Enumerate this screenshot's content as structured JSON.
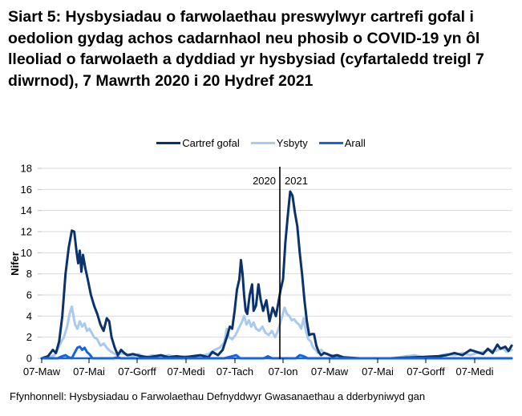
{
  "title": "Siart 5: Hysbysiadau o farwolaethau preswylwyr cartrefi gofal i oedolion gydag achos cadarnhaol neu phosib o COVID-19 yn ôl lleoliad o farwolaeth a dyddiad yr hysbysiad (cyfartaledd treigl 7 diwrnod), 7 Mawrth 2020 i 20 Hydref 2021",
  "source": "Ffynhonnell: Hysbysiadau o Farwolaethau Defnyddwyr Gwasanaethau a dderbyniwyd gan",
  "legend": [
    {
      "label": "Cartref gofal",
      "color": "#0b336b"
    },
    {
      "label": "Ysbyty",
      "color": "#a8c9f0"
    },
    {
      "label": "Arall",
      "color": "#1565e0"
    }
  ],
  "annotations": {
    "left_year": "2020",
    "right_year": "2021"
  },
  "chart_data": {
    "type": "line",
    "title": "Siart 5: Hysbysiadau o farwolaethau preswylwyr cartrefi gofal i oedolion gydag achos cadarnhaol neu phosib o COVID-19 yn ôl lleoliad o farwolaeth a dyddiad yr hysbysiad (cyfartaledd treigl 7 diwrnod), 7 Mawrth 2020 i 20 Hydref 2021",
    "xlabel": "",
    "ylabel": "Nifer",
    "ylim": [
      0,
      18
    ],
    "yticks": [
      0,
      2,
      4,
      6,
      8,
      10,
      12,
      14,
      16,
      18
    ],
    "xtick_labels": [
      "07-Maw",
      "07-Mai",
      "07-Gorff",
      "07-Medi",
      "07-Tach",
      "07-Ion",
      "07-Maw",
      "07-Mai",
      "07-Gorff",
      "07-Medi"
    ],
    "grid": true,
    "legend_position": "top",
    "x_unit": "days since 07-Mar-2020",
    "year_divider_day": 300,
    "series": [
      {
        "name": "Cartref gofal",
        "color": "#0b336b",
        "points": [
          [
            0,
            0
          ],
          [
            8,
            0.2
          ],
          [
            14,
            0.8
          ],
          [
            18,
            0.5
          ],
          [
            22,
            1.6
          ],
          [
            26,
            4.0
          ],
          [
            30,
            8.0
          ],
          [
            34,
            10.5
          ],
          [
            38,
            12.1
          ],
          [
            41,
            12.0
          ],
          [
            44,
            10.0
          ],
          [
            46,
            9.0
          ],
          [
            48,
            10.2
          ],
          [
            50,
            8.2
          ],
          [
            52,
            9.8
          ],
          [
            55,
            8.5
          ],
          [
            58,
            7.5
          ],
          [
            62,
            6.0
          ],
          [
            66,
            5.0
          ],
          [
            70,
            4.2
          ],
          [
            74,
            3.2
          ],
          [
            78,
            2.6
          ],
          [
            82,
            3.8
          ],
          [
            85,
            3.5
          ],
          [
            88,
            2.0
          ],
          [
            92,
            1.0
          ],
          [
            96,
            0.3
          ],
          [
            100,
            0.8
          ],
          [
            104,
            0.5
          ],
          [
            108,
            0.3
          ],
          [
            115,
            0.4
          ],
          [
            125,
            0.2
          ],
          [
            135,
            0.1
          ],
          [
            150,
            0.3
          ],
          [
            160,
            0.1
          ],
          [
            170,
            0.2
          ],
          [
            180,
            0.1
          ],
          [
            190,
            0.2
          ],
          [
            200,
            0.3
          ],
          [
            210,
            0.1
          ],
          [
            215,
            0.6
          ],
          [
            222,
            0.3
          ],
          [
            228,
            0.8
          ],
          [
            234,
            2.2
          ],
          [
            237,
            3.0
          ],
          [
            240,
            2.8
          ],
          [
            243,
            4.5
          ],
          [
            246,
            6.5
          ],
          [
            249,
            7.5
          ],
          [
            251,
            9.3
          ],
          [
            253,
            8.0
          ],
          [
            255,
            6.0
          ],
          [
            257,
            4.5
          ],
          [
            259,
            4.2
          ],
          [
            262,
            6.0
          ],
          [
            265,
            7.0
          ],
          [
            267,
            4.5
          ],
          [
            270,
            5.0
          ],
          [
            273,
            7.0
          ],
          [
            276,
            5.5
          ],
          [
            279,
            4.5
          ],
          [
            283,
            5.5
          ],
          [
            287,
            3.5
          ],
          [
            291,
            4.8
          ],
          [
            295,
            4.0
          ],
          [
            298,
            5.2
          ],
          [
            301,
            6.5
          ],
          [
            304,
            7.5
          ],
          [
            307,
            11.0
          ],
          [
            310,
            13.5
          ],
          [
            313,
            15.8
          ],
          [
            316,
            15.4
          ],
          [
            319,
            13.8
          ],
          [
            322,
            12.5
          ],
          [
            325,
            10.0
          ],
          [
            328,
            8.0
          ],
          [
            331,
            5.5
          ],
          [
            334,
            3.5
          ],
          [
            337,
            2.2
          ],
          [
            340,
            2.3
          ],
          [
            343,
            2.3
          ],
          [
            346,
            1.2
          ],
          [
            349,
            0.6
          ],
          [
            352,
            0.3
          ],
          [
            356,
            0.5
          ],
          [
            360,
            0.4
          ],
          [
            366,
            0.2
          ],
          [
            372,
            0.3
          ],
          [
            380,
            0.1
          ],
          [
            400,
            0
          ],
          [
            440,
            0
          ],
          [
            470,
            0.1
          ],
          [
            500,
            0.2
          ],
          [
            510,
            0.3
          ],
          [
            520,
            0.5
          ],
          [
            530,
            0.3
          ],
          [
            540,
            0.8
          ],
          [
            548,
            0.6
          ],
          [
            556,
            0.4
          ],
          [
            562,
            0.9
          ],
          [
            568,
            0.5
          ],
          [
            574,
            1.3
          ],
          [
            578,
            0.9
          ],
          [
            584,
            1.1
          ],
          [
            588,
            0.7
          ],
          [
            592,
            1.2
          ]
        ]
      },
      {
        "name": "Ysbyty",
        "color": "#a8c9f0",
        "points": [
          [
            0,
            0
          ],
          [
            10,
            0.1
          ],
          [
            16,
            0.3
          ],
          [
            20,
            0.8
          ],
          [
            24,
            1.5
          ],
          [
            28,
            2.0
          ],
          [
            32,
            3.0
          ],
          [
            35,
            4.2
          ],
          [
            38,
            4.9
          ],
          [
            40,
            4.0
          ],
          [
            42,
            3.2
          ],
          [
            45,
            2.8
          ],
          [
            48,
            3.5
          ],
          [
            51,
            3.0
          ],
          [
            54,
            3.3
          ],
          [
            57,
            2.6
          ],
          [
            60,
            2.8
          ],
          [
            63,
            2.4
          ],
          [
            66,
            2.0
          ],
          [
            70,
            1.8
          ],
          [
            74,
            1.2
          ],
          [
            78,
            1.4
          ],
          [
            82,
            1.0
          ],
          [
            86,
            0.7
          ],
          [
            90,
            0.5
          ],
          [
            95,
            0.3
          ],
          [
            100,
            0.5
          ],
          [
            108,
            0.3
          ],
          [
            115,
            0.2
          ],
          [
            122,
            0.4
          ],
          [
            130,
            0.1
          ],
          [
            140,
            0.3
          ],
          [
            150,
            0.1
          ],
          [
            160,
            0.3
          ],
          [
            170,
            0.1
          ],
          [
            180,
            0.2
          ],
          [
            190,
            0.1
          ],
          [
            200,
            0.2
          ],
          [
            210,
            0.4
          ],
          [
            218,
            0.8
          ],
          [
            224,
            1.0
          ],
          [
            230,
            1.5
          ],
          [
            233,
            2.8
          ],
          [
            236,
            2.0
          ],
          [
            240,
            1.8
          ],
          [
            244,
            2.2
          ],
          [
            248,
            2.8
          ],
          [
            252,
            3.4
          ],
          [
            255,
            4.0
          ],
          [
            258,
            3.2
          ],
          [
            261,
            3.6
          ],
          [
            264,
            3.0
          ],
          [
            267,
            3.4
          ],
          [
            270,
            2.8
          ],
          [
            274,
            2.6
          ],
          [
            278,
            3.0
          ],
          [
            282,
            2.4
          ],
          [
            286,
            2.2
          ],
          [
            290,
            2.6
          ],
          [
            294,
            2.0
          ],
          [
            297,
            2.5
          ],
          [
            300,
            3.2
          ],
          [
            303,
            4.0
          ],
          [
            306,
            4.8
          ],
          [
            309,
            4.2
          ],
          [
            312,
            4.0
          ],
          [
            315,
            3.6
          ],
          [
            318,
            3.7
          ],
          [
            321,
            3.4
          ],
          [
            324,
            3.2
          ],
          [
            327,
            2.8
          ],
          [
            330,
            3.8
          ],
          [
            333,
            2.5
          ],
          [
            336,
            1.8
          ],
          [
            339,
            1.6
          ],
          [
            342,
            1.0
          ],
          [
            345,
            0.8
          ],
          [
            348,
            0.5
          ],
          [
            352,
            0.8
          ],
          [
            356,
            0.5
          ],
          [
            362,
            0.3
          ],
          [
            370,
            0.2
          ],
          [
            380,
            0.1
          ],
          [
            400,
            0
          ],
          [
            440,
            0
          ],
          [
            460,
            0.2
          ],
          [
            470,
            0.3
          ],
          [
            480,
            0.1
          ],
          [
            500,
            0.2
          ],
          [
            510,
            0.4
          ],
          [
            520,
            0.3
          ],
          [
            530,
            0.5
          ],
          [
            540,
            0.3
          ],
          [
            548,
            0.5
          ],
          [
            556,
            0.6
          ],
          [
            564,
            0.8
          ],
          [
            572,
            0.7
          ],
          [
            580,
            1.0
          ],
          [
            586,
            0.6
          ],
          [
            592,
            0.8
          ]
        ]
      },
      {
        "name": "Arall",
        "color": "#1565e0",
        "points": [
          [
            0,
            0
          ],
          [
            20,
            0
          ],
          [
            26,
            0.2
          ],
          [
            30,
            0.3
          ],
          [
            34,
            0.1
          ],
          [
            38,
            0
          ],
          [
            42,
            0.6
          ],
          [
            45,
            1.0
          ],
          [
            48,
            1.1
          ],
          [
            51,
            0.8
          ],
          [
            54,
            1.0
          ],
          [
            57,
            0.6
          ],
          [
            60,
            0.4
          ],
          [
            64,
            0
          ],
          [
            90,
            0
          ],
          [
            96,
            0.1
          ],
          [
            100,
            0
          ],
          [
            230,
            0
          ],
          [
            240,
            0.2
          ],
          [
            245,
            0.3
          ],
          [
            250,
            0
          ],
          [
            280,
            0
          ],
          [
            285,
            0.2
          ],
          [
            290,
            0
          ],
          [
            320,
            0
          ],
          [
            325,
            0.3
          ],
          [
            330,
            0.2
          ],
          [
            335,
            0
          ],
          [
            592,
            0
          ]
        ]
      }
    ]
  }
}
